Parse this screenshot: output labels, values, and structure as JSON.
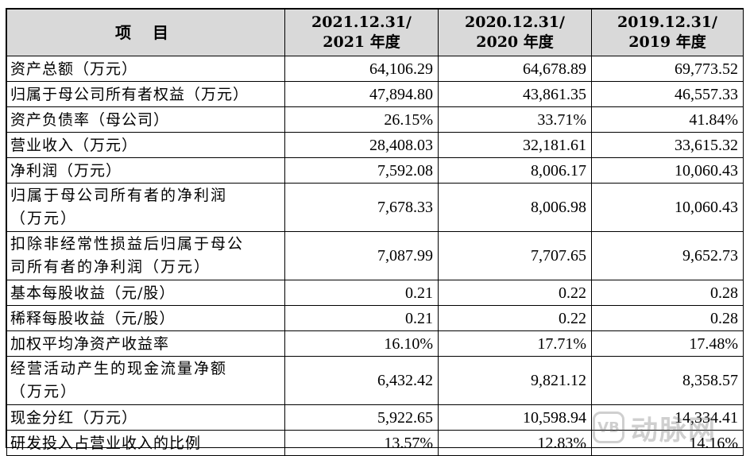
{
  "header": {
    "item": "项 目",
    "col1_line1": "2021.12.31/",
    "col1_line2": "2021 年度",
    "col2_line1": "2020.12.31/",
    "col2_line2": "2020 年度",
    "col3_line1": "2019.12.31/",
    "col3_line2": "2019 年度"
  },
  "rows": [
    {
      "label": "资产总额（万元）",
      "v2021": "64,106.29",
      "v2020": "64,678.89",
      "v2019": "69,773.52"
    },
    {
      "label": "归属于母公司所有者权益（万元）",
      "v2021": "47,894.80",
      "v2020": "43,861.35",
      "v2019": "46,557.33"
    },
    {
      "label": "资产负债率（母公司）",
      "v2021": "26.15%",
      "v2020": "33.71%",
      "v2019": "41.84%"
    },
    {
      "label": "营业收入（万元）",
      "v2021": "28,408.03",
      "v2020": "32,181.61",
      "v2019": "33,615.32"
    },
    {
      "label": "净利润（万元）",
      "v2021": "7,592.08",
      "v2020": "8,006.17",
      "v2019": "10,060.43"
    },
    {
      "label_line1": "归属于母公司所有者的净利润",
      "label_line2": "（万元）",
      "v2021": "7,678.33",
      "v2020": "8,006.98",
      "v2019": "10,060.43"
    },
    {
      "label_line1": "扣除非经常性损益后归属于母公",
      "label_line2": "司所有者的净利润（万元）",
      "v2021": "7,087.99",
      "v2020": "7,707.65",
      "v2019": "9,652.73"
    },
    {
      "label": "基本每股收益（元/股）",
      "v2021": "0.21",
      "v2020": "0.22",
      "v2019": "0.28"
    },
    {
      "label": "稀释每股收益（元/股）",
      "v2021": "0.21",
      "v2020": "0.22",
      "v2019": "0.28"
    },
    {
      "label": "加权平均净资产收益率",
      "v2021": "16.10%",
      "v2020": "17.71%",
      "v2019": "17.48%"
    },
    {
      "label_line1": "经营活动产生的现金流量净额",
      "label_line2": "（万元）",
      "v2021": "6,432.42",
      "v2020": "9,821.12",
      "v2019": "8,358.57"
    },
    {
      "label": "现金分红（万元）",
      "v2021": "5,922.65",
      "v2020": "10,598.94",
      "v2019": "14,334.41"
    },
    {
      "label": "研发投入占营业收入的比例",
      "v2021": "13.57%",
      "v2020": "12.83%",
      "v2019": "14.16%"
    }
  ],
  "watermark": {
    "logo_text": "VB",
    "text": "动脉网"
  }
}
